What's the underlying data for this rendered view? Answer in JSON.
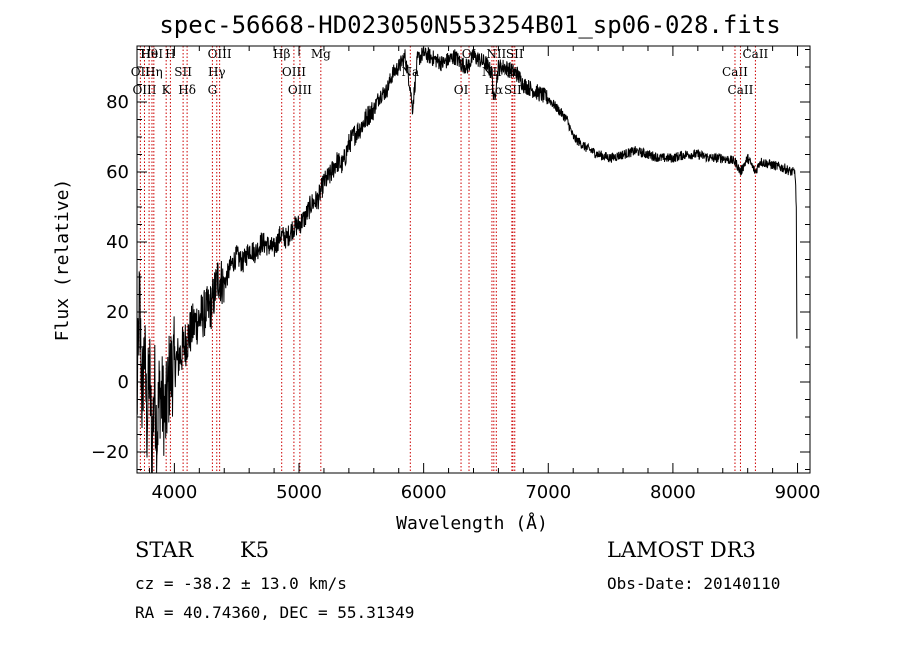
{
  "chart_data": {
    "type": "line",
    "title": "spec-56668-HD023050N553254B01_sp06-028.fits",
    "xlabel": "Wavelength (Å)",
    "ylabel": "Flux (relative)",
    "xlim": [
      3700,
      9100
    ],
    "ylim": [
      -26,
      96
    ],
    "xticks": [
      4000,
      5000,
      6000,
      7000,
      8000,
      9000
    ],
    "yticks": [
      -20,
      0,
      20,
      40,
      60,
      80
    ],
    "series": [
      {
        "name": "flux",
        "x": [
          3700,
          3720,
          3740,
          3760,
          3780,
          3800,
          3820,
          3840,
          3860,
          3880,
          3900,
          3930,
          3960,
          4000,
          4050,
          4100,
          4150,
          4200,
          4250,
          4300,
          4350,
          4400,
          4450,
          4500,
          4550,
          4600,
          4650,
          4700,
          4750,
          4800,
          4850,
          4900,
          4950,
          5000,
          5050,
          5100,
          5150,
          5200,
          5250,
          5300,
          5350,
          5400,
          5450,
          5500,
          5550,
          5600,
          5650,
          5700,
          5750,
          5800,
          5850,
          5890,
          5910,
          5950,
          6000,
          6050,
          6100,
          6150,
          6200,
          6250,
          6300,
          6350,
          6400,
          6450,
          6500,
          6550,
          6563,
          6600,
          6650,
          6700,
          6750,
          6800,
          6850,
          6900,
          6950,
          7000,
          7050,
          7100,
          7150,
          7200,
          7300,
          7400,
          7500,
          7600,
          7700,
          7800,
          7900,
          8000,
          8100,
          8200,
          8300,
          8400,
          8500,
          8542,
          8600,
          8662,
          8700,
          8800,
          8900,
          8950,
          8980,
          8990,
          8995
        ],
        "y": [
          -8,
          25,
          -5,
          10,
          -12,
          5,
          -20,
          0,
          -15,
          -2,
          -5,
          -10,
          2,
          5,
          8,
          12,
          16,
          18,
          20,
          22,
          30,
          28,
          33,
          36,
          34,
          38,
          37,
          40,
          39,
          38,
          42,
          41,
          44,
          45,
          47,
          51,
          52,
          57,
          59,
          63,
          62,
          68,
          71,
          73,
          76,
          78,
          82,
          83,
          88,
          90,
          93,
          85,
          78,
          92,
          94,
          93,
          92,
          91,
          92,
          93,
          91,
          90,
          93,
          92,
          91,
          88,
          80,
          90,
          90,
          89,
          88,
          85,
          84,
          83,
          82,
          81,
          79,
          77,
          75,
          70,
          67,
          65,
          64,
          65,
          66,
          65,
          64,
          64,
          65,
          65,
          64,
          64,
          63,
          60,
          64,
          60,
          63,
          62,
          61,
          60,
          60,
          50,
          12
        ]
      }
    ],
    "line_markers": [
      {
        "label": "Hθ",
        "x": 3797
      },
      {
        "label": "OII",
        "x": 3727
      },
      {
        "label": "OIII",
        "x": 3760
      },
      {
        "label": "HeI",
        "x": 3820
      },
      {
        "label": "Hη",
        "x": 3835
      },
      {
        "label": "K",
        "x": 3934
      },
      {
        "label": "H",
        "x": 3968
      },
      {
        "label": "SII",
        "x": 4070
      },
      {
        "label": "Hδ",
        "x": 4102
      },
      {
        "label": "OIII",
        "x": 4363
      },
      {
        "label": "Hγ",
        "x": 4340
      },
      {
        "label": "G",
        "x": 4305
      },
      {
        "label": "Hβ",
        "x": 4861
      },
      {
        "label": "OIII",
        "x": 4959
      },
      {
        "label": "OIII",
        "x": 5007
      },
      {
        "label": "Mg",
        "x": 5175
      },
      {
        "label": "Na",
        "x": 5893
      },
      {
        "label": "OI",
        "x": 6300
      },
      {
        "label": "OI",
        "x": 6364
      },
      {
        "label": "NII",
        "x": 6548
      },
      {
        "label": "Hα",
        "x": 6563
      },
      {
        "label": "NII",
        "x": 6583
      },
      {
        "label": "Li",
        "x": 6708
      },
      {
        "label": "SII",
        "x": 6716
      },
      {
        "label": "SII",
        "x": 6731
      },
      {
        "label": "CaII",
        "x": 8498
      },
      {
        "label": "CaII",
        "x": 8542
      },
      {
        "label": "CaII",
        "x": 8662
      }
    ],
    "grid": false,
    "legend": "none"
  },
  "info": {
    "class": "STAR",
    "subclass": "K5",
    "survey": "LAMOST DR3",
    "cz": "cz = -38.2 ± 13.0 km/s",
    "obs_date": "Obs-Date: 20140110",
    "coords": "RA =  40.74360, DEC =  55.31349"
  },
  "colors": {
    "line": "#000000",
    "marker": "#cc0000",
    "background": "#ffffff"
  }
}
